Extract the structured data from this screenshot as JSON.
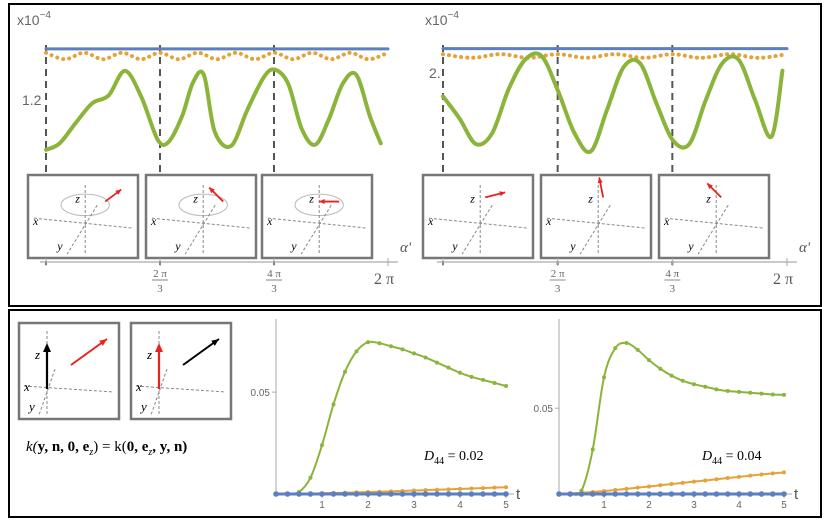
{
  "colors": {
    "blue": "#5b7fbf",
    "orange": "#e6a236",
    "green": "#8bb43b",
    "red": "#e8231f",
    "frame": "#777777",
    "dash": "#555555"
  },
  "top_panel": {
    "left_chart": {
      "exponent_label": "x10",
      "exponent_power": "−4",
      "y_tick_label": "1.2",
      "x_ticks": [
        "2π/3",
        "4π/3",
        "2π"
      ],
      "x_axis_label": "α'",
      "insets": [
        {
          "axis_labels": [
            "z",
            "x",
            "y"
          ],
          "arrow_direction": "up-right"
        },
        {
          "axis_labels": [
            "z",
            "x",
            "y"
          ],
          "arrow_direction": "up-left"
        },
        {
          "axis_labels": [
            "z",
            "x",
            "y"
          ],
          "arrow_direction": "left"
        }
      ]
    },
    "right_chart": {
      "exponent_label": "x10",
      "exponent_power": "−4",
      "y_tick_label": "2.",
      "x_ticks": [
        "2π/3",
        "4π/3",
        "2π"
      ],
      "x_axis_label": "α'",
      "insets": [
        {
          "axis_labels": [
            "z",
            "x",
            "y"
          ],
          "arrow_direction": "right"
        },
        {
          "axis_labels": [
            "z",
            "x",
            "y"
          ],
          "arrow_direction": "up"
        },
        {
          "axis_labels": [
            "z",
            "x",
            "y"
          ],
          "arrow_direction": "up-left"
        }
      ]
    }
  },
  "bottom_panel": {
    "equation": "k(y, n, 0, e_z) = k(0, e_z, y, n)",
    "equation_parts": {
      "lhs_prefix": "k(",
      "lhs_args": "y, n, 0, e",
      "subscript": "z",
      "mid": ") = k(",
      "rhs_args1": "0, e",
      "rhs_args2": ", y, n)"
    },
    "insets": [
      {
        "axis_labels": [
          "z",
          "x",
          "y"
        ],
        "vertical_arrow": "black",
        "diagonal_arrow": "red"
      },
      {
        "axis_labels": [
          "z",
          "x",
          "y"
        ],
        "vertical_arrow": "red",
        "diagonal_arrow": "black"
      }
    ]
  },
  "chart_data": [
    {
      "type": "line",
      "id": "top-left",
      "xlabel": "α'",
      "ylabel": "",
      "xlim": [
        0,
        6.2832
      ],
      "x_tick_labels": [
        "2π/3",
        "4π/3",
        "2π"
      ],
      "x_tick_values": [
        2.0944,
        4.1888,
        6.2832
      ],
      "y_scale_note": "x10^-4",
      "y_tick_labels": [
        "1.2"
      ],
      "series": [
        {
          "color": "#5b7fbf",
          "style": "solid",
          "x": [
            0,
            6.2832
          ],
          "y": [
            1.72,
            1.72
          ]
        },
        {
          "color": "#e6a236",
          "style": "dotted",
          "x": [
            0,
            0.35,
            0.7,
            1.05,
            1.4,
            1.75,
            2.09,
            2.44,
            2.79,
            3.14,
            3.49,
            3.84,
            4.19,
            4.54,
            4.89,
            5.24,
            5.59,
            5.93,
            6.28
          ],
          "y": [
            1.69,
            1.64,
            1.69,
            1.64,
            1.69,
            1.64,
            1.69,
            1.64,
            1.69,
            1.64,
            1.69,
            1.64,
            1.69,
            1.64,
            1.69,
            1.64,
            1.69,
            1.64,
            1.69
          ]
        },
        {
          "color": "#8bb43b",
          "style": "solid",
          "x": [
            0,
            0.25,
            0.55,
            0.85,
            1.15,
            1.45,
            1.75,
            2.05,
            2.25,
            2.5,
            2.7,
            2.9,
            3.1,
            3.4,
            3.7,
            4.0,
            4.2,
            4.45,
            4.7,
            4.95,
            5.2,
            5.45,
            5.7,
            5.95,
            6.15
          ],
          "y": [
            0.94,
            0.99,
            1.15,
            1.3,
            1.36,
            1.55,
            1.35,
            1.02,
            1.0,
            1.2,
            1.46,
            1.52,
            1.08,
            0.97,
            1.25,
            1.5,
            1.56,
            1.45,
            1.1,
            0.98,
            1.18,
            1.45,
            1.52,
            1.2,
            0.99
          ]
        }
      ]
    },
    {
      "type": "line",
      "id": "top-right",
      "xlabel": "α'",
      "ylabel": "",
      "xlim": [
        0,
        6.2832
      ],
      "x_tick_labels": [
        "2π/3",
        "4π/3",
        "2π"
      ],
      "x_tick_values": [
        2.0944,
        4.1888,
        6.2832
      ],
      "y_scale_note": "x10^-4",
      "y_tick_labels": [
        "2."
      ],
      "series": [
        {
          "color": "#5b7fbf",
          "style": "solid",
          "x": [
            0,
            6.2832
          ],
          "y": [
            2.18,
            2.18
          ]
        },
        {
          "color": "#e6a236",
          "style": "dotted",
          "x": [
            0,
            0.52,
            1.05,
            1.57,
            2.09,
            2.62,
            3.14,
            3.67,
            4.19,
            4.71,
            5.24,
            5.76,
            6.28
          ],
          "y": [
            2.15,
            2.13,
            2.15,
            2.13,
            2.15,
            2.13,
            2.15,
            2.13,
            2.15,
            2.13,
            2.15,
            2.13,
            2.15
          ]
        },
        {
          "color": "#8bb43b",
          "style": "solid",
          "x": [
            0,
            0.3,
            0.6,
            0.9,
            1.2,
            1.5,
            1.8,
            2.1,
            2.4,
            2.7,
            3.0,
            3.3,
            3.6,
            3.9,
            4.2,
            4.5,
            4.8,
            5.1,
            5.4,
            5.7,
            6.0,
            6.2
          ],
          "y": [
            1.92,
            1.8,
            1.66,
            1.72,
            1.96,
            2.12,
            2.14,
            1.95,
            1.72,
            1.62,
            1.85,
            2.08,
            2.1,
            1.88,
            1.68,
            1.66,
            1.9,
            2.1,
            2.12,
            1.9,
            1.7,
            2.06
          ]
        }
      ]
    },
    {
      "type": "line",
      "id": "bottom-left",
      "xlabel": "t",
      "ylabel": "",
      "xlim": [
        0,
        5
      ],
      "x_ticks": [
        1,
        2,
        3,
        4,
        5
      ],
      "y_ticks": [
        0.05
      ],
      "annotation": "D44 = 0.02",
      "annotation_parts": {
        "symbol": "D",
        "subscript": "44",
        "value": " = 0.02"
      },
      "series": [
        {
          "color": "#5b7fbf",
          "x": [
            0,
            0.25,
            0.5,
            0.75,
            1,
            1.25,
            1.5,
            1.75,
            2,
            2.25,
            2.5,
            2.75,
            3,
            3.25,
            3.5,
            3.75,
            4,
            4.25,
            4.5,
            4.75,
            5
          ],
          "y": [
            0,
            0,
            0,
            0,
            0,
            0,
            0,
            0,
            0,
            0,
            0,
            0,
            0,
            0,
            0,
            0,
            0,
            0,
            0,
            0,
            0
          ]
        },
        {
          "color": "#e6a236",
          "x": [
            0,
            0.25,
            0.5,
            0.75,
            1,
            1.25,
            1.5,
            1.75,
            2,
            2.25,
            2.5,
            2.75,
            3,
            3.25,
            3.5,
            3.75,
            4,
            4.25,
            4.5,
            4.75,
            5
          ],
          "y": [
            0,
            0,
            0.0001,
            0.0002,
            0.0003,
            0.0005,
            0.0006,
            0.0008,
            0.001,
            0.0011,
            0.0013,
            0.0015,
            0.0017,
            0.0019,
            0.0021,
            0.0023,
            0.0025,
            0.0027,
            0.0029,
            0.0031,
            0.0033
          ]
        },
        {
          "color": "#8bb43b",
          "x": [
            0,
            0.25,
            0.5,
            0.75,
            1,
            1.25,
            1.5,
            1.75,
            2,
            2.25,
            2.5,
            2.75,
            3,
            3.25,
            3.5,
            3.75,
            4,
            4.25,
            4.5,
            4.75,
            5
          ],
          "y": [
            0,
            0,
            0.001,
            0.008,
            0.024,
            0.044,
            0.06,
            0.07,
            0.0745,
            0.074,
            0.0725,
            0.071,
            0.069,
            0.067,
            0.0645,
            0.062,
            0.0595,
            0.0575,
            0.056,
            0.0545,
            0.053
          ]
        }
      ]
    },
    {
      "type": "line",
      "id": "bottom-right",
      "xlabel": "t",
      "ylabel": "",
      "xlim": [
        0,
        5
      ],
      "x_ticks": [
        1,
        2,
        3,
        4,
        5
      ],
      "y_ticks": [
        0.05
      ],
      "annotation": "D44 = 0.04",
      "annotation_parts": {
        "symbol": "D",
        "subscript": "44",
        "value": " = 0.04"
      },
      "series": [
        {
          "color": "#5b7fbf",
          "x": [
            0,
            0.25,
            0.5,
            0.75,
            1,
            1.25,
            1.5,
            1.75,
            2,
            2.25,
            2.5,
            2.75,
            3,
            3.25,
            3.5,
            3.75,
            4,
            4.25,
            4.5,
            4.75,
            5
          ],
          "y": [
            0,
            0,
            0,
            0,
            0,
            0,
            0,
            0,
            0,
            0,
            0,
            0,
            0,
            0,
            0,
            0,
            0,
            0,
            0,
            0,
            0
          ]
        },
        {
          "color": "#e6a236",
          "x": [
            0,
            0.25,
            0.5,
            0.75,
            1,
            1.25,
            1.5,
            1.75,
            2,
            2.25,
            2.5,
            2.75,
            3,
            3.25,
            3.5,
            3.75,
            4,
            4.25,
            4.5,
            4.75,
            5
          ],
          "y": [
            0,
            0.0003,
            0.0007,
            0.0012,
            0.0017,
            0.0023,
            0.003,
            0.0037,
            0.0044,
            0.0051,
            0.0058,
            0.0065,
            0.0072,
            0.0079,
            0.0086,
            0.0093,
            0.01,
            0.0107,
            0.0114,
            0.012,
            0.0126
          ]
        },
        {
          "color": "#8bb43b",
          "x": [
            0,
            0.25,
            0.5,
            0.75,
            1,
            1.25,
            1.5,
            1.75,
            2,
            2.25,
            2.5,
            2.75,
            3,
            3.25,
            3.5,
            3.75,
            4,
            4.25,
            4.5,
            4.75,
            5
          ],
          "y": [
            0,
            0,
            0.002,
            0.026,
            0.068,
            0.085,
            0.088,
            0.084,
            0.078,
            0.073,
            0.069,
            0.066,
            0.064,
            0.0625,
            0.061,
            0.06,
            0.0595,
            0.059,
            0.0585,
            0.058,
            0.0578
          ]
        }
      ]
    }
  ]
}
